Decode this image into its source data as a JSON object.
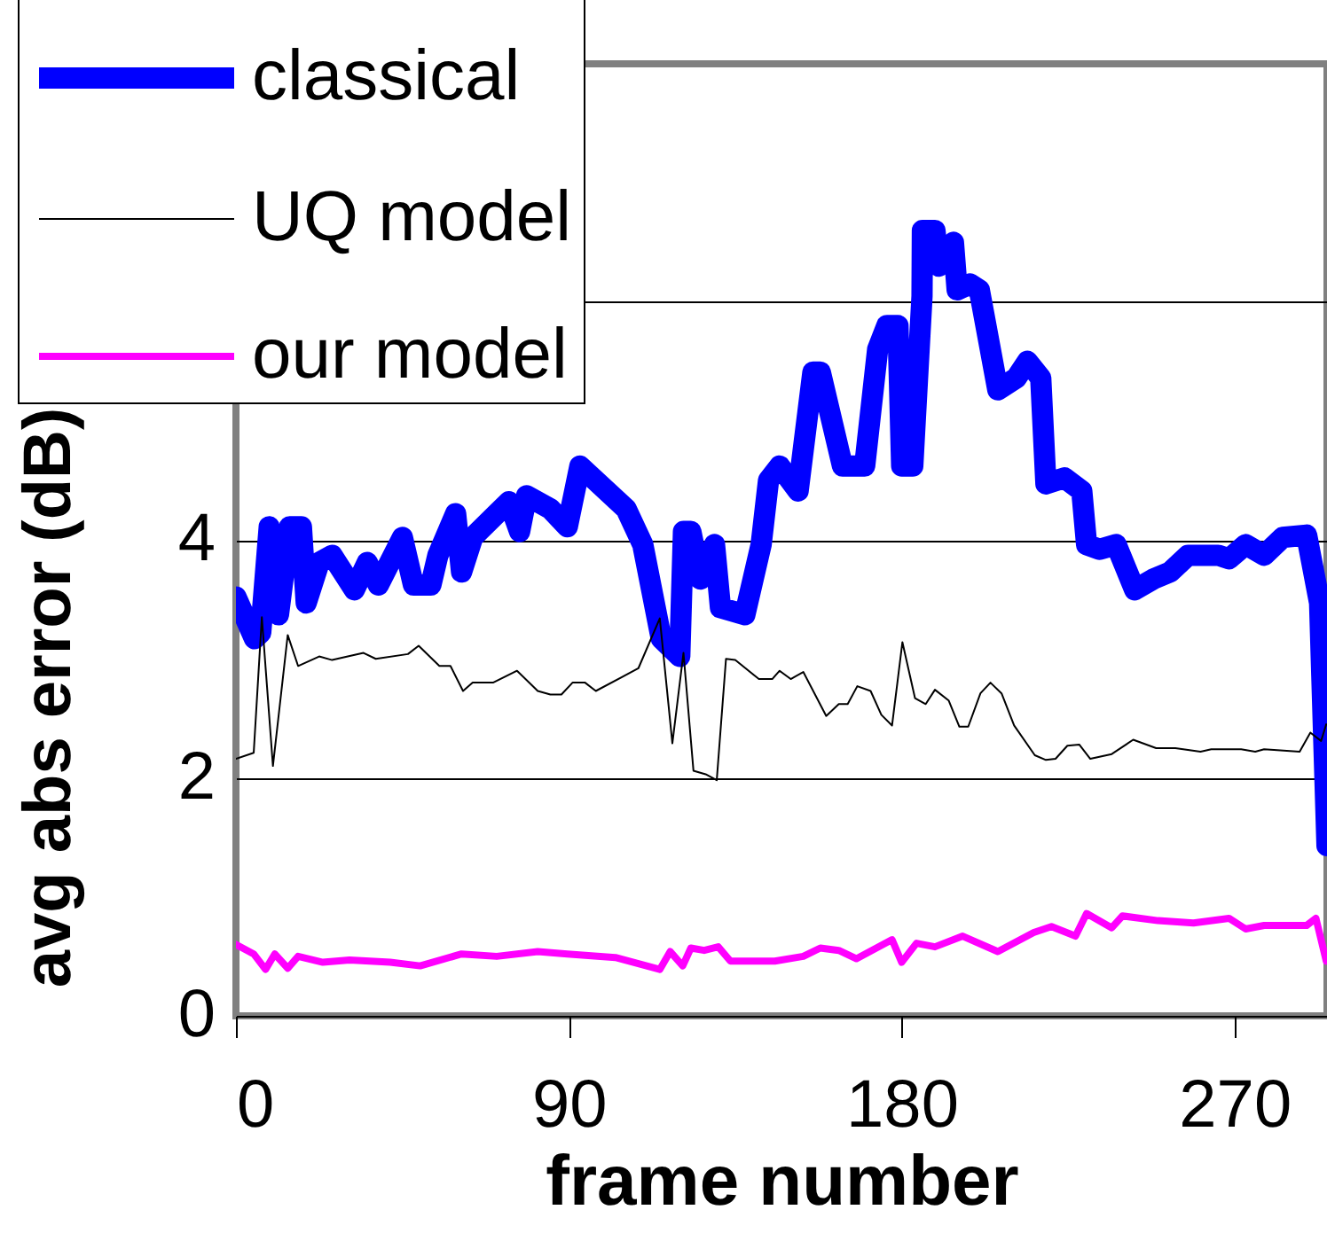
{
  "chart_data": {
    "type": "line",
    "xlabel": "frame number",
    "ylabel": "avg abs error (dB)",
    "xlim": [
      0,
      295
    ],
    "xticks": [
      0,
      90,
      180,
      270
    ],
    "ylim": [
      0,
      8
    ],
    "yticks": [
      0,
      2,
      4,
      {
        "value": 6,
        "label": null
      }
    ],
    "grid": "y",
    "legend": "top left",
    "line_style": "solid",
    "series": [
      {
        "name": "classical",
        "color": "#0000ff",
        "x": [
          0,
          5,
          6.7,
          9,
          11.5,
          14.5,
          17.7,
          19,
          22.5,
          26,
          32,
          35.5,
          38.5,
          45,
          48,
          52.7,
          54.6,
          59.4,
          61,
          64,
          70.5,
          73.8,
          76.7,
          78.6,
          85,
          89.6,
          93,
          105.5,
          110,
          115,
          120,
          121,
          123,
          125.6,
          129.4,
          131,
          137.6,
          142,
          144,
          147,
          152,
          156,
          158,
          164,
          170,
          173.5,
          176,
          179,
          180,
          183,
          185.5,
          185.6,
          189,
          190,
          194,
          195,
          198.5,
          201,
          206,
          211,
          214,
          217.6,
          219,
          224,
          228.7,
          230,
          233.5,
          238,
          243,
          248,
          252.6,
          257.4,
          265.6,
          268.5,
          273,
          278,
          283,
          289.5,
          293,
          295
        ],
        "values": [
          3.52,
          3.17,
          3.22,
          4.11,
          3.37,
          4.11,
          4.11,
          3.47,
          3.81,
          3.87,
          3.58,
          3.81,
          3.62,
          4.02,
          3.62,
          3.62,
          3.87,
          4.22,
          3.73,
          4.02,
          4.22,
          4.32,
          4.07,
          4.37,
          4.26,
          4.11,
          4.62,
          4.26,
          3.96,
          3.17,
          3.02,
          4.07,
          4.07,
          3.67,
          3.96,
          3.43,
          3.37,
          3.96,
          4.5,
          4.62,
          4.41,
          5.41,
          5.41,
          4.62,
          4.62,
          5.6,
          5.8,
          5.8,
          4.62,
          4.62,
          6.05,
          6.6,
          6.6,
          6.3,
          6.5,
          6.1,
          6.15,
          6.1,
          5.26,
          5.36,
          5.5,
          5.36,
          4.47,
          4.52,
          4.41,
          3.96,
          3.92,
          3.96,
          3.58,
          3.67,
          3.73,
          3.87,
          3.87,
          3.84,
          3.96,
          3.87,
          4.02,
          4.04,
          3.47,
          1.43
        ]
      },
      {
        "name": "UQ model",
        "color": "#000000",
        "x": [
          0,
          4.8,
          7,
          10,
          14,
          16.8,
          22.5,
          26,
          34.5,
          37.8,
          46.5,
          49.4,
          55,
          58,
          61.4,
          64,
          69.5,
          76,
          81.6,
          85,
          88,
          91,
          94.4,
          97.3,
          108.8,
          114.6,
          118,
          121,
          123.7,
          127,
          130,
          132.5,
          135,
          141.4,
          145,
          147,
          150,
          153.4,
          159.6,
          163,
          165.4,
          168,
          171.6,
          174.5,
          177.4,
          180.2,
          183.6,
          186.5,
          189,
          192.7,
          195.6,
          198,
          201.3,
          204,
          207,
          210.4,
          216,
          219,
          221.6,
          224.8,
          228,
          231,
          236.8,
          242.6,
          248.8,
          254,
          260.8,
          263.7,
          271.8,
          275.6,
          278,
          282.4,
          287.6,
          290.5,
          293.4,
          294.8
        ],
        "values": [
          2.16,
          2.21,
          3.35,
          2.1,
          3.2,
          2.94,
          3.02,
          2.99,
          3.05,
          3.0,
          3.04,
          3.11,
          2.94,
          2.94,
          2.73,
          2.8,
          2.8,
          2.9,
          2.73,
          2.7,
          2.7,
          2.8,
          2.8,
          2.73,
          2.92,
          3.34,
          2.29,
          3.05,
          2.06,
          2.03,
          1.98,
          3.0,
          2.99,
          2.83,
          2.83,
          2.9,
          2.83,
          2.89,
          2.52,
          2.62,
          2.62,
          2.77,
          2.73,
          2.53,
          2.44,
          3.14,
          2.67,
          2.62,
          2.74,
          2.65,
          2.43,
          2.43,
          2.71,
          2.8,
          2.71,
          2.44,
          2.19,
          2.15,
          2.16,
          2.27,
          2.28,
          2.16,
          2.2,
          2.32,
          2.25,
          2.25,
          2.22,
          2.24,
          2.24,
          2.22,
          2.24,
          2.23,
          2.22,
          2.38,
          2.31,
          2.45
        ]
      },
      {
        "name": "our model",
        "color": "#ff00ff",
        "x": [
          0,
          4.8,
          8,
          10.5,
          14,
          16.8,
          23.5,
          30.7,
          41.7,
          49.8,
          61,
          70.5,
          81.6,
          89.6,
          102.6,
          114.6,
          117.4,
          120.8,
          123,
          126.6,
          130.4,
          133.7,
          145.7,
          153.4,
          158,
          163,
          167.8,
          177.4,
          180,
          184,
          189,
          196.5,
          206,
          215.7,
          220.5,
          227,
          230,
          236.8,
          239.7,
          249.3,
          258.9,
          268.5,
          273,
          278,
          289.5,
          292,
          294.8
        ],
        "values": [
          0.6,
          0.52,
          0.39,
          0.52,
          0.4,
          0.5,
          0.45,
          0.47,
          0.45,
          0.42,
          0.52,
          0.5,
          0.54,
          0.52,
          0.49,
          0.39,
          0.54,
          0.42,
          0.57,
          0.55,
          0.58,
          0.46,
          0.46,
          0.5,
          0.57,
          0.55,
          0.48,
          0.64,
          0.45,
          0.61,
          0.58,
          0.67,
          0.54,
          0.7,
          0.75,
          0.67,
          0.86,
          0.74,
          0.84,
          0.8,
          0.78,
          0.82,
          0.73,
          0.76,
          0.76,
          0.82,
          0.46
        ]
      }
    ]
  }
}
